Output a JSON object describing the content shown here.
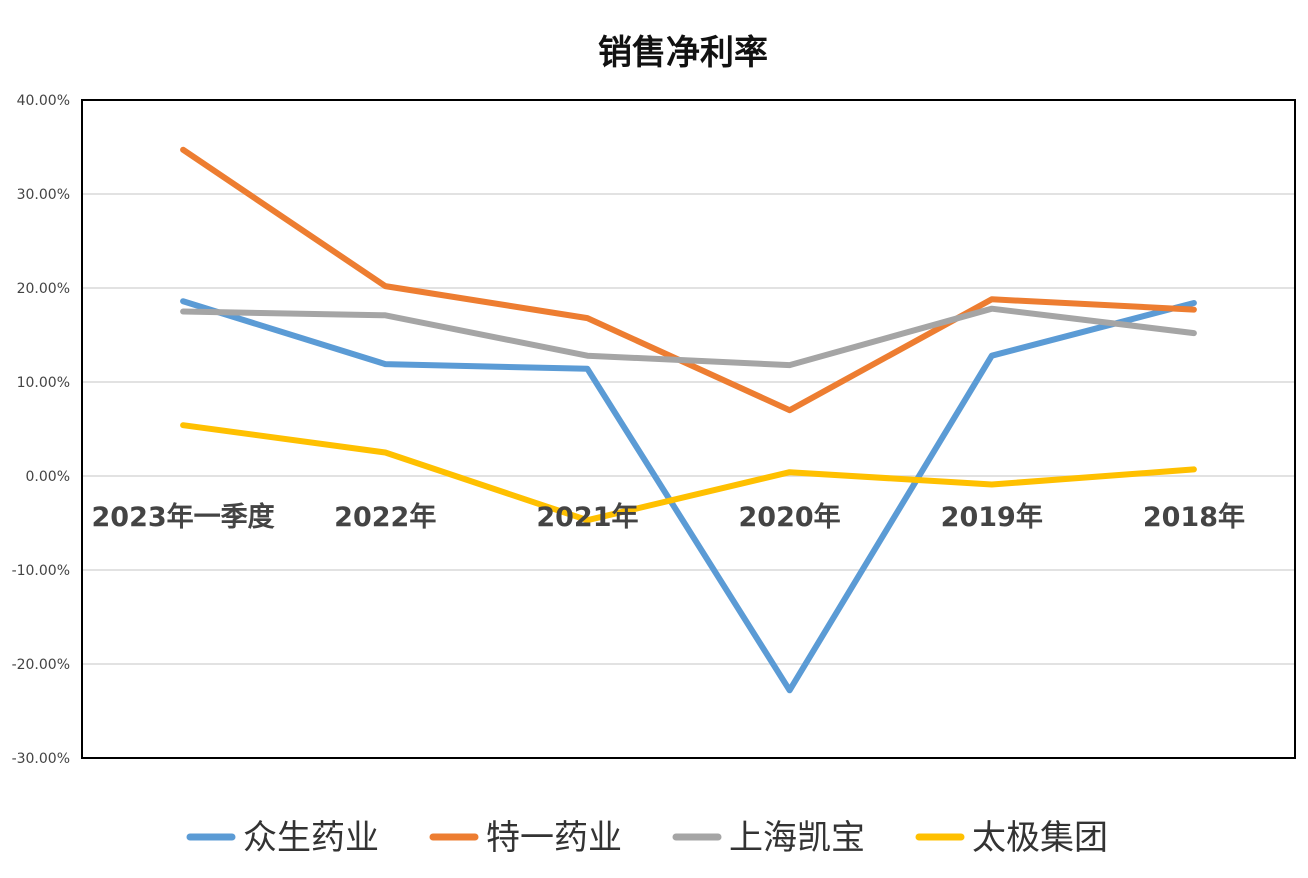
{
  "chart_data": {
    "type": "line",
    "title": "销售净利率",
    "xlabel": "",
    "ylabel": "",
    "categories": [
      "2023年一季度",
      "2022年",
      "2021年",
      "2020年",
      "2019年",
      "2018年"
    ],
    "ylim": [
      -0.3,
      0.4
    ],
    "y_ticks": [
      0.4,
      0.3,
      0.2,
      0.1,
      0.0,
      -0.1,
      -0.2,
      -0.3
    ],
    "y_tick_labels": [
      "40.00%",
      "30.00%",
      "20.00%",
      "10.00%",
      "0.00%",
      "-10.00%",
      "-20.00%",
      "-30.00%"
    ],
    "grid": true,
    "legend_position": "bottom",
    "series": [
      {
        "name": "众生药业",
        "color": "#5B9BD5",
        "values": [
          0.186,
          0.119,
          0.114,
          -0.228,
          0.128,
          0.184
        ]
      },
      {
        "name": "特一药业",
        "color": "#ED7D31",
        "values": [
          0.347,
          0.202,
          0.168,
          0.07,
          0.188,
          0.177
        ]
      },
      {
        "name": "上海凯宝",
        "color": "#A5A5A5",
        "values": [
          0.175,
          0.171,
          0.128,
          0.118,
          0.178,
          0.152
        ]
      },
      {
        "name": "太极集团",
        "color": "#FFC000",
        "values": [
          0.054,
          0.025,
          -0.047,
          0.004,
          -0.009,
          0.007
        ]
      }
    ]
  }
}
